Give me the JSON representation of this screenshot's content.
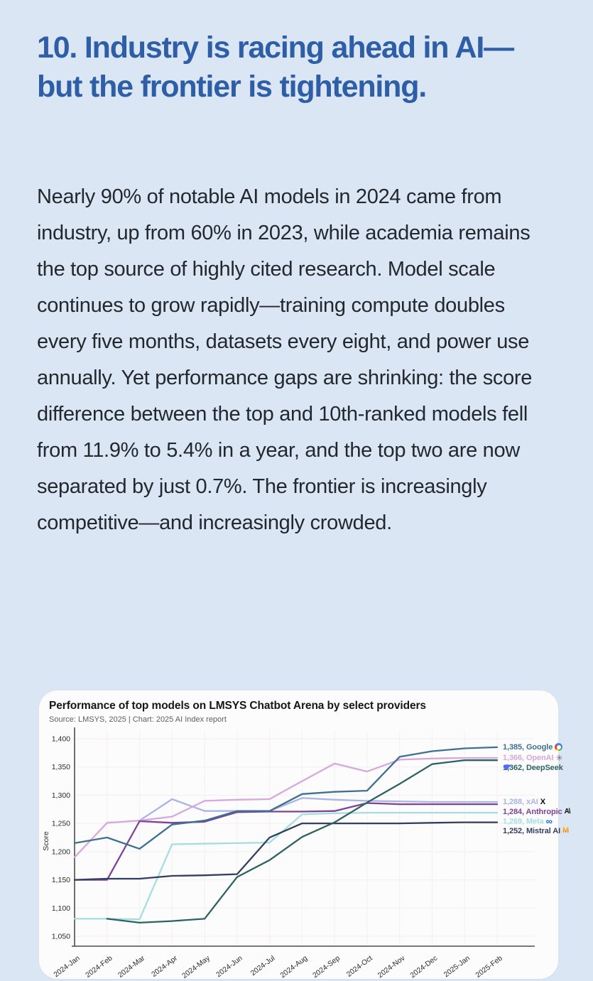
{
  "page": {
    "background": "#dbe6f5",
    "heading": "10. Industry is racing ahead in AI—but the frontier is tightening.",
    "heading_color": "#2e5ea6",
    "body_text": "Nearly 90% of notable AI models in 2024 came from industry, up from 60% in 2023, while academia remains the top source of highly cited research. Model scale continues to grow rapidly—training compute doubles every five months, datasets every eight, and power use annually. Yet performance gaps are shrinking: the score difference between the top and 10th-ranked models fell from 11.9% to 5.4% in a year, and the top two are now separated by just 0.7%. The frontier is increasingly competitive—and increasingly crowded."
  },
  "chart_data": {
    "type": "line",
    "title": "Performance of top models on LMSYS Chatbot Arena by select providers",
    "source": "Source: LMSYS, 2025 | Chart: 2025 AI Index report",
    "ylabel": "Score",
    "ylim": [
      1050,
      1400
    ],
    "ytick_step": 50,
    "grid": true,
    "legend_position": "right-of-line-end",
    "x": [
      "2024-Jan",
      "2024-Feb",
      "2024-Mar",
      "2024-Apr",
      "2024-May",
      "2024-Jun",
      "2024-Jul",
      "2024-Aug",
      "2024-Sep",
      "2024-Oct",
      "2024-Nov",
      "2024-Dec",
      "2025-Jan",
      "2025-Feb"
    ],
    "series": [
      {
        "name": "Google",
        "final_label": "1,385, Google",
        "final_value": 1385,
        "color": "#3e7093",
        "icon": "google-icon",
        "values": [
          1215,
          1225,
          1205,
          1248,
          1255,
          1272,
          1272,
          1302,
          1306,
          1308,
          1368,
          1378,
          1383,
          1385
        ]
      },
      {
        "name": "OpenAI",
        "final_label": "1,366, OpenAI",
        "final_value": 1366,
        "color": "#d7a8dc",
        "icon": "openai-icon",
        "values": [
          1190,
          1251,
          1255,
          1262,
          1290,
          1292,
          1293,
          1325,
          1356,
          1342,
          1363,
          1365,
          1366,
          1366
        ]
      },
      {
        "name": "DeepSeek",
        "final_label": "1,362, DeepSeek",
        "final_value": 1362,
        "color": "#2e6360",
        "icon": "deepseek-icon",
        "values": [
          null,
          1081,
          1074,
          1077,
          1081,
          1155,
          1185,
          1226,
          1252,
          1287,
          1320,
          1355,
          1362,
          1362
        ]
      },
      {
        "name": "xAI",
        "final_label": "1,288, xAI",
        "final_value": 1288,
        "color": "#aab5e6",
        "icon": "xai-icon",
        "values": [
          null,
          null,
          1255,
          1293,
          1272,
          1272,
          1272,
          1295,
          1292,
          1290,
          1289,
          1288,
          1288,
          1288
        ]
      },
      {
        "name": "Anthropic",
        "final_label": "1,284, Anthropic",
        "final_value": 1284,
        "color": "#7c4397",
        "icon": "anthropic-icon",
        "values": [
          1150,
          1150,
          1254,
          1251,
          1253,
          1270,
          1271,
          1271,
          1272,
          1286,
          1284,
          1284,
          1284,
          1284
        ]
      },
      {
        "name": "Meta",
        "final_label": "1,269, Meta",
        "final_value": 1269,
        "color": "#a5dee2",
        "icon": "meta-icon",
        "values": [
          1081,
          1081,
          1080,
          1213,
          1214,
          1215,
          1216,
          1266,
          1268,
          1269,
          1269,
          1269,
          1269,
          1269
        ]
      },
      {
        "name": "Mistral AI",
        "final_label": "1,252, Mistral AI",
        "final_value": 1252,
        "color": "#333f5e",
        "icon": "mistral-icon",
        "values": [
          1150,
          1152,
          1152,
          1157,
          1158,
          1160,
          1225,
          1250,
          1250,
          1250,
          1250,
          1251,
          1252,
          1252
        ]
      }
    ],
    "draw_order": [
      "Meta",
      "xAI",
      "OpenAI",
      "Anthropic",
      "Mistral AI",
      "Google",
      "DeepSeek"
    ]
  }
}
